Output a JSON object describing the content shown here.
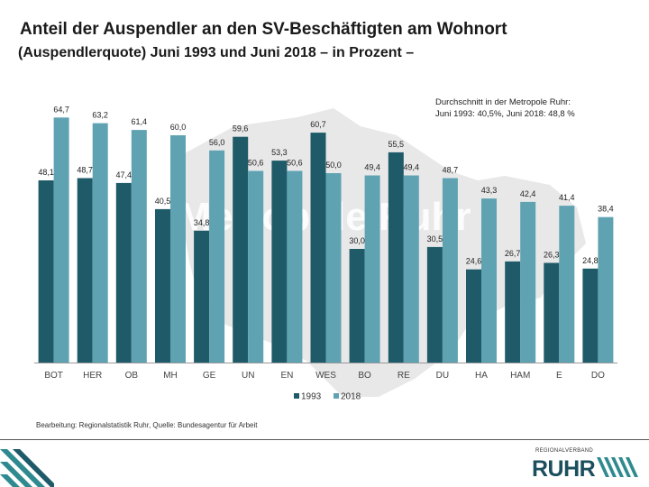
{
  "header": {
    "title": "Anteil der Auspendler an den SV-Beschäftigten am Wohnort",
    "subtitle": "(Auspendlerquote) Juni 1993 und Juni 2018 – in Prozent –"
  },
  "chart_data": {
    "type": "bar",
    "categories": [
      "BOT",
      "HER",
      "OB",
      "MH",
      "GE",
      "UN",
      "EN",
      "WES",
      "BO",
      "RE",
      "DU",
      "HA",
      "HAM",
      "E",
      "DO"
    ],
    "series": [
      {
        "name": "1993",
        "color": "#1e5a68",
        "values": [
          48.1,
          48.7,
          47.4,
          40.5,
          34.8,
          59.6,
          53.3,
          60.7,
          30.0,
          55.5,
          30.5,
          24.6,
          26.7,
          26.3,
          24.8
        ],
        "labels": [
          "48,1",
          "48,7",
          "47,4",
          "40,5",
          "34,8",
          "59,6",
          "53,3",
          "60,7",
          "30,0",
          "55,5",
          "30,5",
          "24,6",
          "26,7",
          "26,3",
          "24,8"
        ]
      },
      {
        "name": "2018",
        "color": "#5fa3b3",
        "values": [
          64.7,
          63.2,
          61.4,
          60.0,
          56.0,
          50.6,
          50.6,
          50.0,
          49.4,
          49.4,
          48.7,
          43.3,
          42.4,
          41.4,
          38.4
        ],
        "labels": [
          "64,7",
          "63,2",
          "61,4",
          "60,0",
          "56,0",
          "50,6",
          "50,6",
          "50,0",
          "49,4",
          "49,4",
          "48,7",
          "43,3",
          "42,4",
          "41,4",
          "38,4"
        ]
      }
    ],
    "ylim": [
      0,
      70
    ],
    "grid": false,
    "legend": "bottom",
    "annotation": [
      "Durchschnitt in der Metropole Ruhr:",
      "Juni 1993: 40,5%, Juni 2018: 48,8 %"
    ],
    "background_text": "Metropole Ruhr"
  },
  "footer": {
    "source": "Bearbeitung: Regionalstatistik Ruhr, Quelle: Bundesagentur für Arbeit",
    "logo_top": "REGIONALVERBAND",
    "logo_main": "RUHR"
  }
}
